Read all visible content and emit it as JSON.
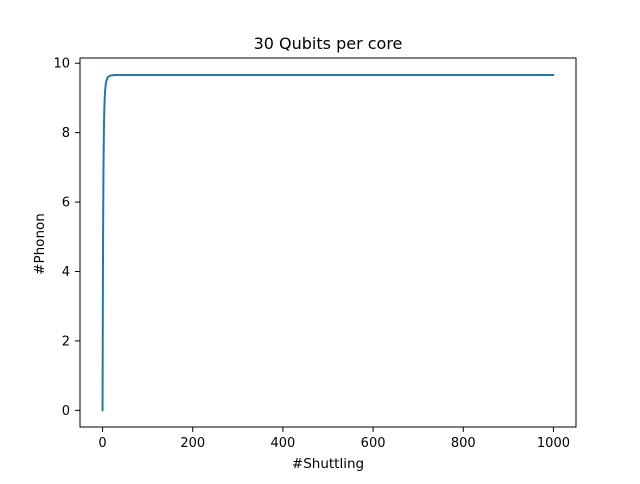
{
  "chart_data": {
    "type": "line",
    "title": "30 Qubits per core",
    "xlabel": "#Shuttling",
    "ylabel": "#Phonon",
    "xlim": [
      -50,
      1050
    ],
    "ylim": [
      -0.48,
      10.15
    ],
    "x_ticks": [
      0,
      200,
      400,
      600,
      800,
      1000
    ],
    "y_ticks": [
      0,
      2,
      4,
      6,
      8,
      10
    ],
    "grid": false,
    "legend": "none",
    "series": [
      {
        "color": "#1f77b4",
        "x": [
          0,
          1,
          2,
          3,
          4,
          5,
          6,
          7,
          8,
          10,
          12,
          15,
          20,
          30,
          50,
          100,
          200,
          400,
          600,
          800,
          1000
        ],
        "y": [
          0.0,
          4.6,
          6.9,
          8.1,
          8.7,
          9.05,
          9.25,
          9.38,
          9.46,
          9.55,
          9.6,
          9.63,
          9.65,
          9.66,
          9.66,
          9.66,
          9.66,
          9.66,
          9.66,
          9.66,
          9.66
        ]
      }
    ]
  }
}
